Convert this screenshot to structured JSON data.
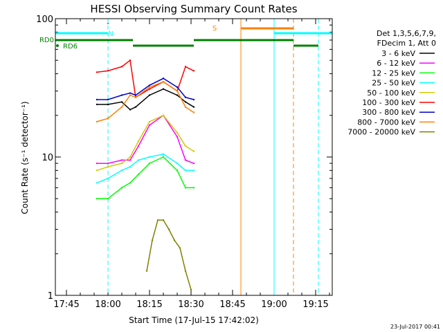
{
  "chart_data": {
    "type": "line",
    "title": "HESSI Observing Summary Count Rates",
    "xlabel": "Start Time (17-Jul-15 17:42:02)",
    "ylabel": "Count Rate (s⁻¹ detector⁻¹)",
    "yscale": "log",
    "ylim": [
      1,
      100
    ],
    "xlim_minutes_after_17:40": [
      1,
      101
    ],
    "x_ticks": [
      {
        "label": "17:45",
        "minutes": 5
      },
      {
        "label": "18:00",
        "minutes": 20
      },
      {
        "label": "18:15",
        "minutes": 35
      },
      {
        "label": "18:30",
        "minutes": 50
      },
      {
        "label": "18:45",
        "minutes": 65
      },
      {
        "label": "19:00",
        "minutes": 80
      },
      {
        "label": "19:15",
        "minutes": 95
      }
    ],
    "y_ticks": [
      {
        "label": "1",
        "value": 1
      },
      {
        "label": "10",
        "value": 10
      },
      {
        "label": "100",
        "value": 100
      }
    ],
    "legend_header": [
      "Det 1,3,5,6,7,9,",
      "FDecim 1, Att 0"
    ],
    "legend_position": "top-right, outside plot",
    "series": [
      {
        "name": "3 - 6 keV",
        "color": "#000000",
        "x": [
          16,
          20,
          25,
          28,
          30,
          35,
          40,
          45,
          48,
          51
        ],
        "y": [
          24,
          24,
          25,
          22,
          23,
          28,
          31,
          28,
          25,
          23
        ]
      },
      {
        "name": "6 - 12 keV",
        "color": "#ff00ff",
        "x": [
          16,
          20,
          25,
          28,
          31,
          35,
          40,
          45,
          48,
          51
        ],
        "y": [
          9,
          9,
          9.5,
          9.5,
          12,
          17,
          20,
          14,
          9.5,
          9
        ]
      },
      {
        "name": "12 - 25 keV",
        "color": "#00ff00",
        "x": [
          16,
          20,
          25,
          28,
          31,
          35,
          40,
          45,
          48,
          51
        ],
        "y": [
          5,
          5,
          6,
          6.5,
          7.5,
          9,
          10,
          8,
          6,
          6
        ]
      },
      {
        "name": "25 - 50 keV",
        "color": "#00ffff",
        "x": [
          16,
          20,
          25,
          28,
          31,
          35,
          40,
          45,
          48,
          51
        ],
        "y": [
          6.5,
          7,
          8,
          8.5,
          9.5,
          10,
          10.5,
          9,
          8,
          8
        ]
      },
      {
        "name": "50 - 100 keV",
        "color": "#d4c800",
        "x": [
          16,
          20,
          25,
          28,
          31,
          35,
          40,
          45,
          48,
          51
        ],
        "y": [
          8,
          8.5,
          9,
          10,
          13,
          18,
          20,
          15,
          12,
          11
        ]
      },
      {
        "name": "100 - 300 keV",
        "color": "#ff0000",
        "x": [
          16,
          20,
          25,
          28,
          30,
          35,
          40,
          45,
          48,
          51
        ],
        "y": [
          41,
          42,
          45,
          50,
          27,
          31,
          35,
          30,
          45,
          42
        ]
      },
      {
        "name": "300 - 800 keV",
        "color": "#0000cc",
        "x": [
          16,
          20,
          25,
          28,
          30,
          35,
          40,
          45,
          48,
          51
        ],
        "y": [
          26,
          26,
          28,
          29,
          28,
          33,
          37,
          32,
          27,
          26
        ]
      },
      {
        "name": "800 - 7000 keV",
        "color": "#ff8000",
        "x": [
          16,
          20,
          25,
          28,
          30,
          35,
          40,
          45,
          48,
          51
        ],
        "y": [
          18,
          19,
          23,
          28,
          27,
          32,
          35,
          30,
          23,
          21
        ]
      },
      {
        "name": "7000 - 20000 keV",
        "color": "#808000",
        "x": [
          34,
          36,
          38,
          40,
          42,
          44,
          46,
          48,
          50
        ],
        "y": [
          1.5,
          2.5,
          3.5,
          3.5,
          3,
          2.5,
          2.2,
          1.5,
          1.1
        ]
      }
    ],
    "annotations": {
      "flag_labels": [
        {
          "text": "N",
          "color": "#00ffff"
        },
        {
          "text": "S",
          "color": "#ff8000"
        },
        {
          "text": "RD0",
          "color": "#008000"
        },
        {
          "text": "RD6",
          "color": "#008000"
        }
      ],
      "cyan_night_bars_minutes": [
        [
          1,
          20
        ],
        [
          80,
          101
        ]
      ],
      "orange_saa_bar_minutes": [
        [
          68,
          87
        ]
      ],
      "green_rd0_bars_minutes": [
        [
          1,
          29
        ],
        [
          29,
          51
        ],
        [
          51,
          87
        ],
        [
          87,
          96
        ]
      ],
      "vertical_lines": [
        {
          "minutes": 1,
          "color": "#00ffff",
          "style": "solid"
        },
        {
          "minutes": 20,
          "color": "#00ffff",
          "style": "dashed"
        },
        {
          "minutes": 68,
          "color": "#ff8000",
          "style": "solid"
        },
        {
          "minutes": 80,
          "color": "#00ffff",
          "style": "solid"
        },
        {
          "minutes": 87,
          "color": "#ff8000",
          "style": "dashed"
        },
        {
          "minutes": 96,
          "color": "#00ffff",
          "style": "dashed"
        }
      ]
    },
    "footer_timestamp": "23-Jul-2017 00:41"
  }
}
